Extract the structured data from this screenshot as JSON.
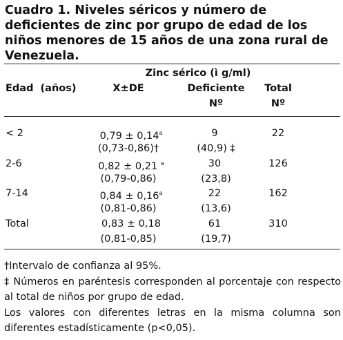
{
  "title": "Cuadro 1. Niveles séricos y número de deficientes de zinc por grupo de edad de los niños menores de 15 años de una zona rural de Venezuela.",
  "table": {
    "group_header": "Zinc sérico (ì g/ml)",
    "columns": [
      "Edad  (años)",
      "X±DE",
      "Deficiente",
      "Total"
    ],
    "unit_row": [
      "Nº",
      "Nº"
    ],
    "rows": [
      {
        "label": "< 2",
        "mean": "0,79 ± 0,14",
        "sup": "a",
        "ci": "(0,73-0,86)†",
        "n": "9",
        "pct": "(40,9) ‡",
        "total": "22"
      },
      {
        "label": "2-6",
        "mean": "0,82 ± 0,21 ",
        "sup": "a",
        "ci": "(0,79-0,86)",
        "n": "30",
        "pct": "(23,8)",
        "total": "126"
      },
      {
        "label": "7-14",
        "mean": "0,84 ± 0,16",
        "sup": "a",
        "ci": "(0,81-0,86)",
        "n": "22",
        "pct": "(13,6)",
        "total": "162"
      },
      {
        "label": "Total",
        "mean": "0,83 ± 0,18",
        "ci": "(0,81-0,85)",
        "n": "61",
        "pct": "(19,7)",
        "total": "310"
      }
    ]
  },
  "footnotes": [
    "†Intervalo de confianza al 95%.",
    "‡ Números en paréntesis corresponden al porcentaje con respecto al total de niños por grupo de edad.",
    "Los valores con diferentes letras en la misma columna son diferentes estadísticamente (p<0,05)."
  ]
}
